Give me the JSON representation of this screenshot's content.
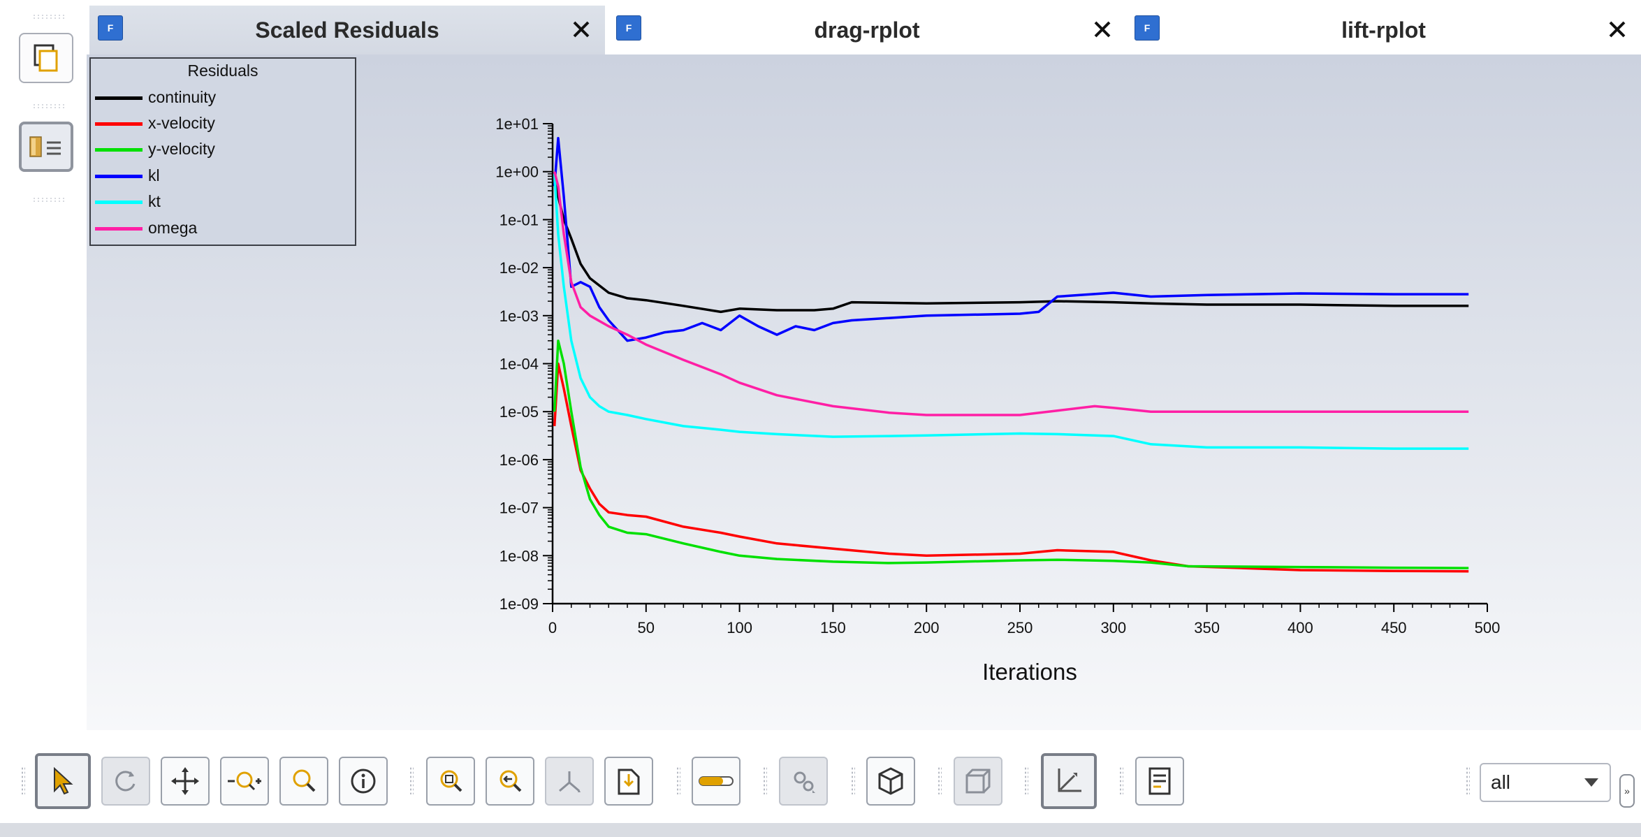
{
  "tabs": [
    {
      "title": "Scaled Residuals",
      "active": true
    },
    {
      "title": "drag-rplot",
      "active": false
    },
    {
      "title": "lift-rplot",
      "active": false
    }
  ],
  "tab_icon_letter": "F",
  "legend": {
    "title": "Residuals",
    "items": [
      {
        "label": "continuity",
        "color": "#000000"
      },
      {
        "label": "x-velocity",
        "color": "#ff0000"
      },
      {
        "label": "y-velocity",
        "color": "#00e000"
      },
      {
        "label": "kl",
        "color": "#0000ff"
      },
      {
        "label": "kt",
        "color": "#00ffff"
      },
      {
        "label": "omega",
        "color": "#ff1fa5"
      }
    ]
  },
  "toolbar": {
    "view_selector_value": "all",
    "more_label": "»"
  },
  "chart_data": {
    "type": "line",
    "title": "",
    "xlabel": "Iterations",
    "ylabel": "",
    "xlim": [
      0,
      500
    ],
    "ylim_log10": [
      -9,
      1
    ],
    "yscale": "log",
    "x_ticks": [
      0,
      50,
      100,
      150,
      200,
      250,
      300,
      350,
      400,
      450,
      500
    ],
    "y_ticks": [
      "1e-09",
      "1e-08",
      "1e-07",
      "1e-06",
      "1e-05",
      "1e-04",
      "1e-03",
      "1e-02",
      "1e-01",
      "1e+00",
      "1e+01"
    ],
    "grid": false,
    "legend_position": "top-left",
    "series": [
      {
        "name": "continuity",
        "color": "#000000",
        "x": [
          1,
          3,
          6,
          10,
          15,
          20,
          30,
          40,
          50,
          70,
          90,
          100,
          120,
          140,
          150,
          160,
          200,
          250,
          270,
          300,
          320,
          350,
          400,
          450,
          490
        ],
        "y": [
          0.9,
          0.3,
          0.1,
          0.04,
          0.012,
          0.006,
          0.003,
          0.0023,
          0.0021,
          0.0016,
          0.0012,
          0.0014,
          0.0013,
          0.0013,
          0.0014,
          0.0019,
          0.0018,
          0.0019,
          0.002,
          0.0019,
          0.0018,
          0.0017,
          0.0017,
          0.0016,
          0.0016
        ]
      },
      {
        "name": "x-velocity",
        "color": "#ff0000",
        "x": [
          1,
          3,
          6,
          10,
          15,
          20,
          25,
          30,
          40,
          50,
          70,
          90,
          100,
          120,
          150,
          180,
          200,
          250,
          270,
          300,
          320,
          340,
          400,
          450,
          490
        ],
        "y": [
          5e-06,
          0.0001,
          3e-05,
          5e-06,
          6e-07,
          2.5e-07,
          1.2e-07,
          8e-08,
          7e-08,
          6.5e-08,
          4e-08,
          3e-08,
          2.5e-08,
          1.8e-08,
          1.4e-08,
          1.1e-08,
          1e-08,
          1.1e-08,
          1.3e-08,
          1.2e-08,
          8e-09,
          6e-09,
          5e-09,
          4.8e-09,
          4.7e-09
        ]
      },
      {
        "name": "y-velocity",
        "color": "#00e000",
        "x": [
          1,
          3,
          6,
          10,
          15,
          20,
          25,
          30,
          40,
          50,
          70,
          90,
          100,
          120,
          150,
          180,
          200,
          250,
          270,
          300,
          320,
          340,
          400,
          450,
          490
        ],
        "y": [
          1e-05,
          0.0003,
          0.0001,
          1e-05,
          7e-07,
          1.5e-07,
          7e-08,
          4e-08,
          3e-08,
          2.8e-08,
          1.8e-08,
          1.2e-08,
          1e-08,
          8.5e-09,
          7.5e-09,
          7e-09,
          7.2e-09,
          8e-09,
          8.2e-09,
          7.8e-09,
          7.2e-09,
          6e-09,
          5.8e-09,
          5.6e-09,
          5.5e-09
        ]
      },
      {
        "name": "kl",
        "color": "#0000ff",
        "x": [
          1,
          3,
          6,
          10,
          15,
          20,
          25,
          30,
          40,
          50,
          60,
          70,
          80,
          90,
          100,
          110,
          120,
          130,
          140,
          150,
          160,
          200,
          250,
          260,
          270,
          300,
          320,
          350,
          400,
          450,
          490
        ],
        "y": [
          0.5,
          5,
          0.3,
          0.004,
          0.005,
          0.004,
          0.0015,
          0.0008,
          0.0003,
          0.00035,
          0.00045,
          0.0005,
          0.0007,
          0.0005,
          0.001,
          0.0006,
          0.0004,
          0.0006,
          0.0005,
          0.0007,
          0.0008,
          0.001,
          0.0011,
          0.0012,
          0.0025,
          0.003,
          0.0025,
          0.0027,
          0.0029,
          0.0028,
          0.0028
        ]
      },
      {
        "name": "kt",
        "color": "#00ffff",
        "x": [
          1,
          3,
          6,
          10,
          15,
          20,
          25,
          30,
          40,
          50,
          70,
          90,
          100,
          120,
          150,
          180,
          200,
          250,
          270,
          300,
          320,
          350,
          400,
          450,
          490
        ],
        "y": [
          0.9,
          0.05,
          0.004,
          0.0003,
          5e-05,
          2e-05,
          1.3e-05,
          1e-05,
          8.5e-06,
          7e-06,
          5e-06,
          4.2e-06,
          3.8e-06,
          3.4e-06,
          3e-06,
          3.1e-06,
          3.2e-06,
          3.5e-06,
          3.4e-06,
          3.1e-06,
          2.1e-06,
          1.8e-06,
          1.8e-06,
          1.7e-06,
          1.7e-06
        ]
      },
      {
        "name": "omega",
        "color": "#ff1fa5",
        "x": [
          1,
          3,
          6,
          10,
          15,
          20,
          30,
          40,
          50,
          70,
          90,
          100,
          120,
          150,
          180,
          200,
          250,
          270,
          290,
          300,
          320,
          350,
          400,
          450,
          490
        ],
        "y": [
          1,
          0.5,
          0.05,
          0.005,
          0.0015,
          0.001,
          0.0006,
          0.0004,
          0.00025,
          0.00012,
          6e-05,
          4e-05,
          2.2e-05,
          1.3e-05,
          9.5e-06,
          8.5e-06,
          8.5e-06,
          1.05e-05,
          1.3e-05,
          1.2e-05,
          1e-05,
          1e-05,
          1e-05,
          1e-05,
          1e-05
        ]
      }
    ]
  }
}
